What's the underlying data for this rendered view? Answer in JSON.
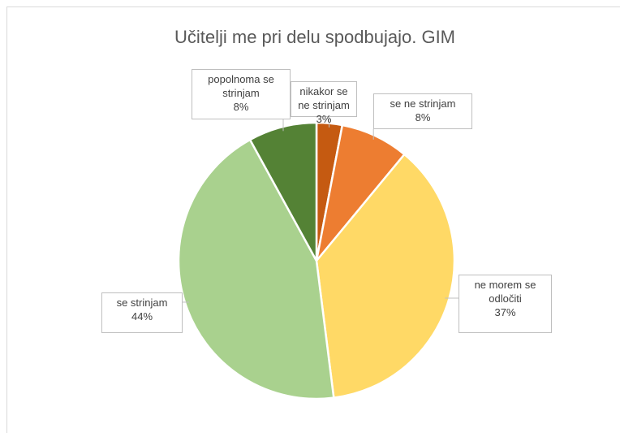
{
  "chart_data": {
    "type": "pie",
    "title": "Učitelji me pri delu spodbujajo. GIM",
    "categories": [
      "nikakor se ne strinjam",
      "se ne strinjam",
      "ne morem se odločiti",
      "se strinjam",
      "popolnoma se strinjam"
    ],
    "values": [
      3,
      8,
      37,
      44,
      8
    ],
    "value_labels": [
      "3%",
      "8%",
      "37%",
      "44%",
      "8%"
    ],
    "colors": [
      "#c55a11",
      "#ed7d31",
      "#ffd966",
      "#a9d18e",
      "#548235"
    ]
  }
}
